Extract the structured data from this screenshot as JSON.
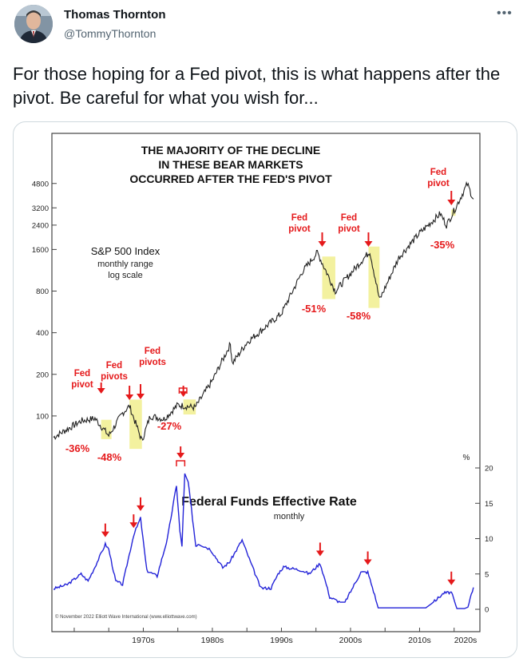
{
  "author": {
    "name": "Thomas Thornton",
    "handle": "@TommyThornton",
    "more_icon": "more-horizontal-icon"
  },
  "tweet": {
    "text": "For those hoping for a Fed pivot, this is what happens after the pivot.  Be careful for what you wish for..."
  },
  "chart_data": [
    {
      "type": "line",
      "title": "THE MAJORITY OF THE DECLINE IN THESE BEAR MARKETS OCCURRED AFTER THE FED'S PIVOT",
      "title_lines": [
        "THE MAJORITY OF THE DECLINE",
        "IN THESE BEAR MARKETS",
        "OCCURRED AFTER THE FED'S PIVOT"
      ],
      "series_label": "S&P 500 Index",
      "series_sub1": "monthly range",
      "series_sub2": "log scale",
      "log_scale": true,
      "y_ticks": [
        100,
        200,
        400,
        800,
        1600,
        2400,
        3200,
        4800
      ],
      "x_ticks": [
        "1970s",
        "1980s",
        "1990s",
        "2000s",
        "2010s",
        "2020s"
      ],
      "x": [
        1962,
        1966,
        1968,
        1970,
        1972,
        1973,
        1974.8,
        1976,
        1978,
        1980,
        1982.5,
        1985,
        1987.6,
        1987.9,
        1990,
        1995,
        1998,
        2000.2,
        2002.8,
        2007.8,
        2009.2,
        2012,
        2015,
        2018,
        2018.9,
        2020.2,
        2021.9,
        2022.8
      ],
      "values": [
        70,
        92,
        96,
        72,
        105,
        118,
        66,
        100,
        95,
        120,
        115,
        180,
        330,
        240,
        340,
        550,
        1100,
        1520,
        800,
        1550,
        690,
        1400,
        2100,
        2900,
        2400,
        3200,
        4750,
        3700
      ],
      "declines": [
        {
          "label": "-36%",
          "x0": 1968.9,
          "x1": 1970.4,
          "pivot_label": "Fed pivot"
        },
        {
          "label": "-48%",
          "x0": 1973.0,
          "x1": 1974.8,
          "pivot_label": "Fed pivots"
        },
        {
          "label": "-27%",
          "x0": 1980.8,
          "x1": 1982.6,
          "pivot_label": "Fed pivots"
        },
        {
          "label": "-51%",
          "x0": 2000.9,
          "x1": 2002.8,
          "pivot_label": "Fed pivot"
        },
        {
          "label": "-58%",
          "x0": 2007.6,
          "x1": 2009.2,
          "pivot_label": "Fed pivot"
        },
        {
          "label": "-35%",
          "x0": 2019.6,
          "x1": 2020.2,
          "pivot_label": "Fed pivot"
        }
      ]
    },
    {
      "type": "line",
      "title": "Federal Funds Effective Rate",
      "subtitle": "monthly",
      "unit": "%",
      "y_ticks": [
        0,
        5,
        10,
        15,
        20
      ],
      "x": [
        1962,
        1964,
        1966,
        1967,
        1968,
        1969.5,
        1970,
        1971,
        1972,
        1973.6,
        1974.6,
        1975.5,
        1977,
        1978.5,
        1979.8,
        1980.3,
        1980.6,
        1981,
        1981.5,
        1982.6,
        1983,
        1984.7,
        1986.5,
        1987.5,
        1989.3,
        1990,
        1992,
        1993.5,
        1994.5,
        1995.3,
        1998,
        1999,
        2000.6,
        2001.5,
        2002,
        2003.5,
        2004.2,
        2006.5,
        2007.5,
        2008.5,
        2009,
        2015.9,
        2017,
        2018.5,
        2019.6,
        2020.4,
        2021.5,
        2022,
        2022.8
      ],
      "values": [
        2.9,
        3.5,
        5.0,
        4.0,
        6.0,
        9.2,
        8.5,
        4.0,
        3.5,
        10.5,
        12.9,
        5.5,
        4.7,
        10.0,
        17.6,
        11.0,
        9.0,
        19.1,
        18.0,
        9.0,
        9.3,
        8.5,
        5.9,
        6.7,
        9.8,
        8.0,
        3.0,
        3.0,
        5.0,
        6.0,
        5.5,
        5.0,
        6.5,
        3.5,
        1.7,
        1.0,
        1.0,
        5.25,
        5.25,
        2.0,
        0.2,
        0.2,
        1.0,
        2.3,
        2.4,
        0.1,
        0.1,
        0.3,
        3.1
      ],
      "pivot_markers": [
        1969.5,
        1973.6,
        1974.6,
        1979.8,
        1981.0,
        2000.6,
        2007.5,
        2019.6
      ]
    }
  ],
  "credit": "© November 2022 Elliott Wave International (www.elliottwave.com)"
}
